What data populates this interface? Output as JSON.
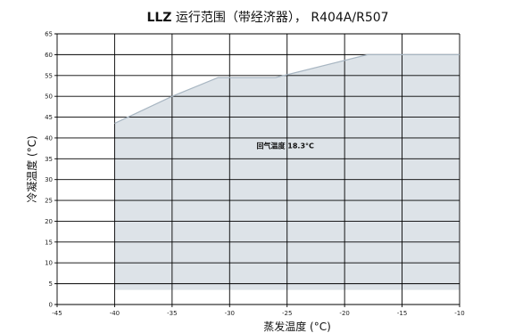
{
  "chart_data": {
    "type": "area",
    "title_bold": "LLZ",
    "title_rest": " 运行范围（带经济器）， R404A/R507",
    "xlabel": "蒸发温度 (°C)",
    "ylabel": "冷凝温度 (°C)",
    "xlim": [
      -45,
      -10
    ],
    "ylim": [
      0,
      65
    ],
    "x_ticks": [
      -45,
      -40,
      -35,
      -30,
      -25,
      -20,
      -15,
      -10
    ],
    "y_ticks": [
      0,
      5,
      10,
      15,
      20,
      25,
      30,
      35,
      40,
      45,
      50,
      55,
      60,
      65
    ],
    "grid": true,
    "envelope": {
      "x": [
        -40,
        -40,
        -35,
        -31,
        -26,
        -18,
        -10,
        -10
      ],
      "y": [
        3.5,
        43.5,
        50,
        54.5,
        54.5,
        60,
        60,
        3.5
      ]
    },
    "annotation": {
      "text": "回气温度 18.3°C",
      "x": -25,
      "y": 37.5
    },
    "colors": {
      "fill": "#dde3e8",
      "outline": "#a8b6c2",
      "grid": "#000000"
    }
  }
}
